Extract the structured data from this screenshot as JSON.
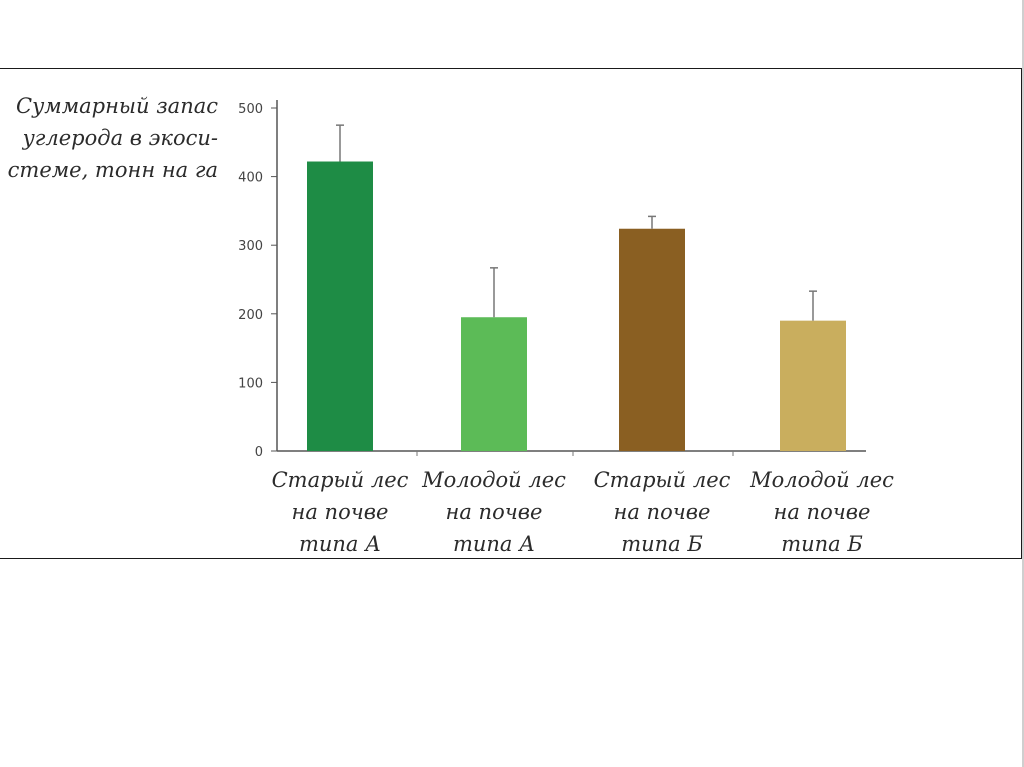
{
  "chart_data": {
    "type": "bar",
    "ylabel_lines": [
      "Суммарный запас",
      "углерода в экоси-",
      "стеме, тонн на га"
    ],
    "ylim": [
      0,
      500
    ],
    "yticks": [
      "0",
      "100",
      "200",
      "300",
      "400",
      "500"
    ],
    "ytick_values": [
      0,
      100,
      200,
      300,
      400,
      500
    ],
    "categories": [
      {
        "lines": [
          "Старый лес",
          "на почве",
          "типа А"
        ]
      },
      {
        "lines": [
          "Молодой лес",
          "на почве",
          "типа А"
        ]
      },
      {
        "lines": [
          "Старый лес",
          "на почве",
          "типа Б"
        ]
      },
      {
        "lines": [
          "Молодой лес",
          "на почве",
          "типа Б"
        ]
      }
    ],
    "values": [
      422,
      195,
      324,
      190
    ],
    "error_upper": [
      475,
      267,
      342,
      233
    ],
    "colors": [
      "#1e8c45",
      "#5cbb57",
      "#8a5f22",
      "#c9ae5e"
    ],
    "grid": false,
    "legend": "none"
  }
}
